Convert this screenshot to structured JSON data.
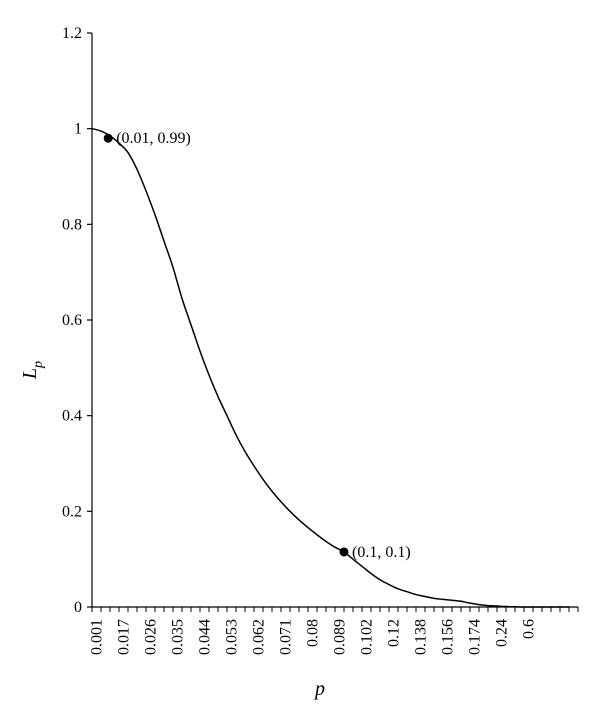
{
  "chart_data": {
    "type": "line",
    "xlabel": "p",
    "ylabel": "L",
    "ylabel_subscript": "p",
    "ylim": [
      0,
      1.2
    ],
    "y_ticks": [
      "0",
      "0.2",
      "0.4",
      "0.6",
      "0.8",
      "1",
      "1.2"
    ],
    "x_tick_labels": [
      "0.001",
      "0.017",
      "0.026",
      "0.035",
      "0.044",
      "0.053",
      "0.062",
      "0.071",
      "0.08",
      "0.089",
      "0.102",
      "0.12",
      "0.138",
      "0.156",
      "0.174",
      "0.24",
      "0.6"
    ],
    "x_categories": 54,
    "grid": false,
    "series": [
      {
        "color": "#000000",
        "points": [
          [
            0.0,
            1.0
          ],
          [
            1.0,
            0.995
          ],
          [
            2.0,
            0.985
          ],
          [
            3.0,
            0.97
          ],
          [
            4.0,
            0.95
          ],
          [
            5.0,
            0.915
          ],
          [
            6.0,
            0.87
          ],
          [
            7.0,
            0.82
          ],
          [
            8.0,
            0.765
          ],
          [
            9.0,
            0.71
          ],
          [
            10.0,
            0.645
          ],
          [
            11.0,
            0.59
          ],
          [
            12.0,
            0.535
          ],
          [
            13.0,
            0.485
          ],
          [
            14.0,
            0.44
          ],
          [
            15.0,
            0.4
          ],
          [
            16.0,
            0.36
          ],
          [
            17.0,
            0.325
          ],
          [
            18.0,
            0.295
          ],
          [
            19.0,
            0.267
          ],
          [
            20.0,
            0.242
          ],
          [
            21.0,
            0.22
          ],
          [
            22.0,
            0.2
          ],
          [
            23.0,
            0.182
          ],
          [
            24.0,
            0.166
          ],
          [
            25.0,
            0.151
          ],
          [
            26.0,
            0.137
          ],
          [
            27.0,
            0.125
          ],
          [
            28.0,
            0.115
          ],
          [
            29.0,
            0.1
          ],
          [
            30.0,
            0.085
          ],
          [
            31.0,
            0.07
          ],
          [
            32.0,
            0.057
          ],
          [
            33.0,
            0.047
          ],
          [
            34.0,
            0.038
          ],
          [
            35.0,
            0.032
          ],
          [
            36.0,
            0.026
          ],
          [
            37.0,
            0.022
          ],
          [
            38.0,
            0.018
          ],
          [
            39.0,
            0.016
          ],
          [
            40.0,
            0.014
          ],
          [
            41.0,
            0.012
          ],
          [
            42.0,
            0.008
          ],
          [
            43.0,
            0.005
          ],
          [
            44.0,
            0.003
          ],
          [
            45.0,
            0.002
          ],
          [
            46.0,
            0.001
          ],
          [
            47.0,
            0.0005
          ],
          [
            48.0,
            0.0
          ],
          [
            51.0,
            0.0
          ],
          [
            53.0,
            0.0
          ]
        ]
      }
    ],
    "markers": [
      {
        "x_index": 1.8,
        "y": 0.98,
        "label": "(0.01, 0.99)"
      },
      {
        "x_index": 28.0,
        "y": 0.115,
        "label": "(0.1, 0.1)"
      }
    ]
  }
}
